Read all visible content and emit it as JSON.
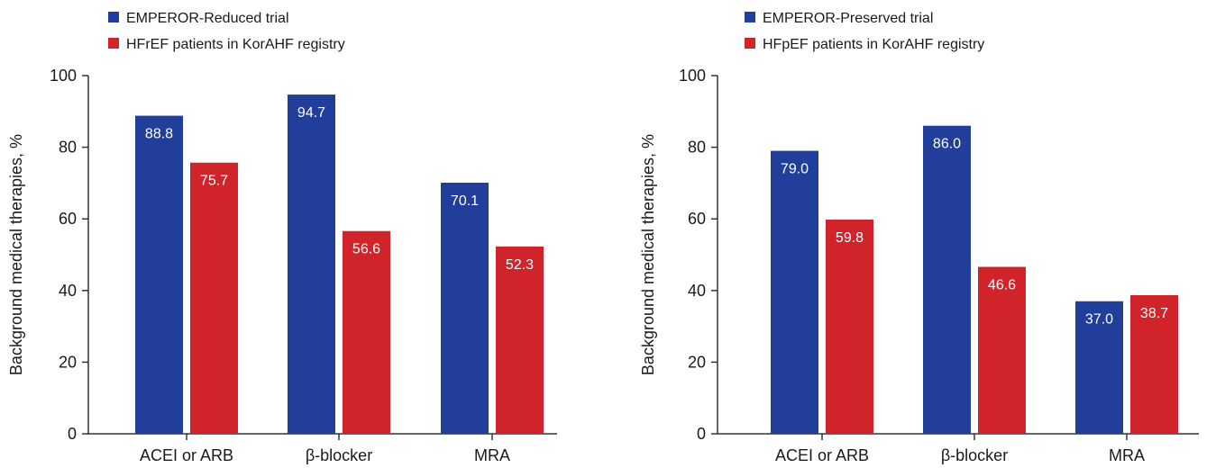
{
  "chart_data": [
    {
      "type": "bar",
      "categories": [
        "ACEI or ARB",
        "β-blocker",
        "MRA"
      ],
      "series": [
        {
          "name": "EMPEROR-Reduced trial",
          "values": [
            88.8,
            94.7,
            70.1
          ],
          "color": "#213f9a"
        },
        {
          "name": "HFrEF patients in KorAHF registry",
          "values": [
            75.7,
            56.6,
            52.3
          ],
          "color": "#d0232a"
        }
      ],
      "value_labels": [
        [
          "88.8",
          "94.7",
          "70.1"
        ],
        [
          "75.7",
          "56.6",
          "52.3"
        ]
      ],
      "ylabel": "Background medical therapies, %",
      "ylim": [
        0,
        100
      ],
      "yticks": [
        "0",
        "20",
        "40",
        "60",
        "80",
        "100"
      ],
      "grid": false,
      "legend_position": "top-left"
    },
    {
      "type": "bar",
      "categories": [
        "ACEI or ARB",
        "β-blocker",
        "MRA"
      ],
      "series": [
        {
          "name": "EMPEROR-Preserved trial",
          "values": [
            79.0,
            86.0,
            37.0
          ],
          "color": "#213f9a"
        },
        {
          "name": "HFpEF patients in KorAHF registry",
          "values": [
            59.8,
            46.6,
            38.7
          ],
          "color": "#d0232a"
        }
      ],
      "value_labels": [
        [
          "79.0",
          "86.0",
          "37.0"
        ],
        [
          "59.8",
          "46.6",
          "38.7"
        ]
      ],
      "ylabel": "Background medical therapies, %",
      "ylim": [
        0,
        100
      ],
      "yticks": [
        "0",
        "20",
        "40",
        "60",
        "80",
        "100"
      ],
      "grid": false,
      "legend_position": "top-left"
    }
  ]
}
